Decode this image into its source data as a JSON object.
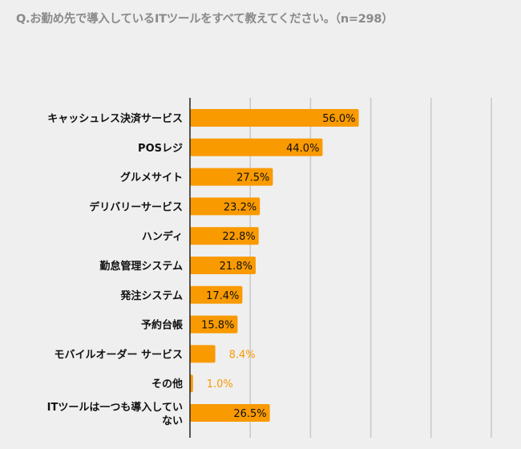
{
  "chart_data": {
    "type": "bar",
    "orientation": "horizontal",
    "title": "Q.お勤め先で導入しているITツールをすべて教えてください。（n=298）",
    "categories": [
      "キャッシュレス決済サービス",
      "POSレジ",
      "グルメサイト",
      "デリバリーサービス",
      "ハンディ",
      "勤怠管理システム",
      "発注システム",
      "予約台帳",
      "モバイルオーダー サービス",
      "その他",
      "ITツールは一つも導入していない"
    ],
    "category_lines": [
      [
        "キャッシュレス決済サービス"
      ],
      [
        "POSレジ"
      ],
      [
        "グルメサイト"
      ],
      [
        "デリバリーサービス"
      ],
      [
        "ハンディ"
      ],
      [
        "勤怠管理システム"
      ],
      [
        "発注システム"
      ],
      [
        "予約台帳"
      ],
      [
        "モバイルオーダー サービス"
      ],
      [
        "その他"
      ],
      [
        "ITツールは一つも導入してい",
        "ない"
      ]
    ],
    "values": [
      56.0,
      44.0,
      27.5,
      23.2,
      22.8,
      21.8,
      17.4,
      15.8,
      8.4,
      1.0,
      26.5
    ],
    "labels": [
      "56.0%",
      "44.0%",
      "27.5%",
      "23.2%",
      "22.8%",
      "21.8%",
      "17.4%",
      "15.8%",
      "8.4%",
      "1.0%",
      "26.5%"
    ],
    "xlim": [
      0,
      100
    ],
    "grid_step": 20,
    "grid": true,
    "xlabel": "",
    "ylabel": "",
    "bar_color": "#f99a00",
    "inside_label_color": "#111111",
    "outside_label_color": "#f99a00"
  }
}
